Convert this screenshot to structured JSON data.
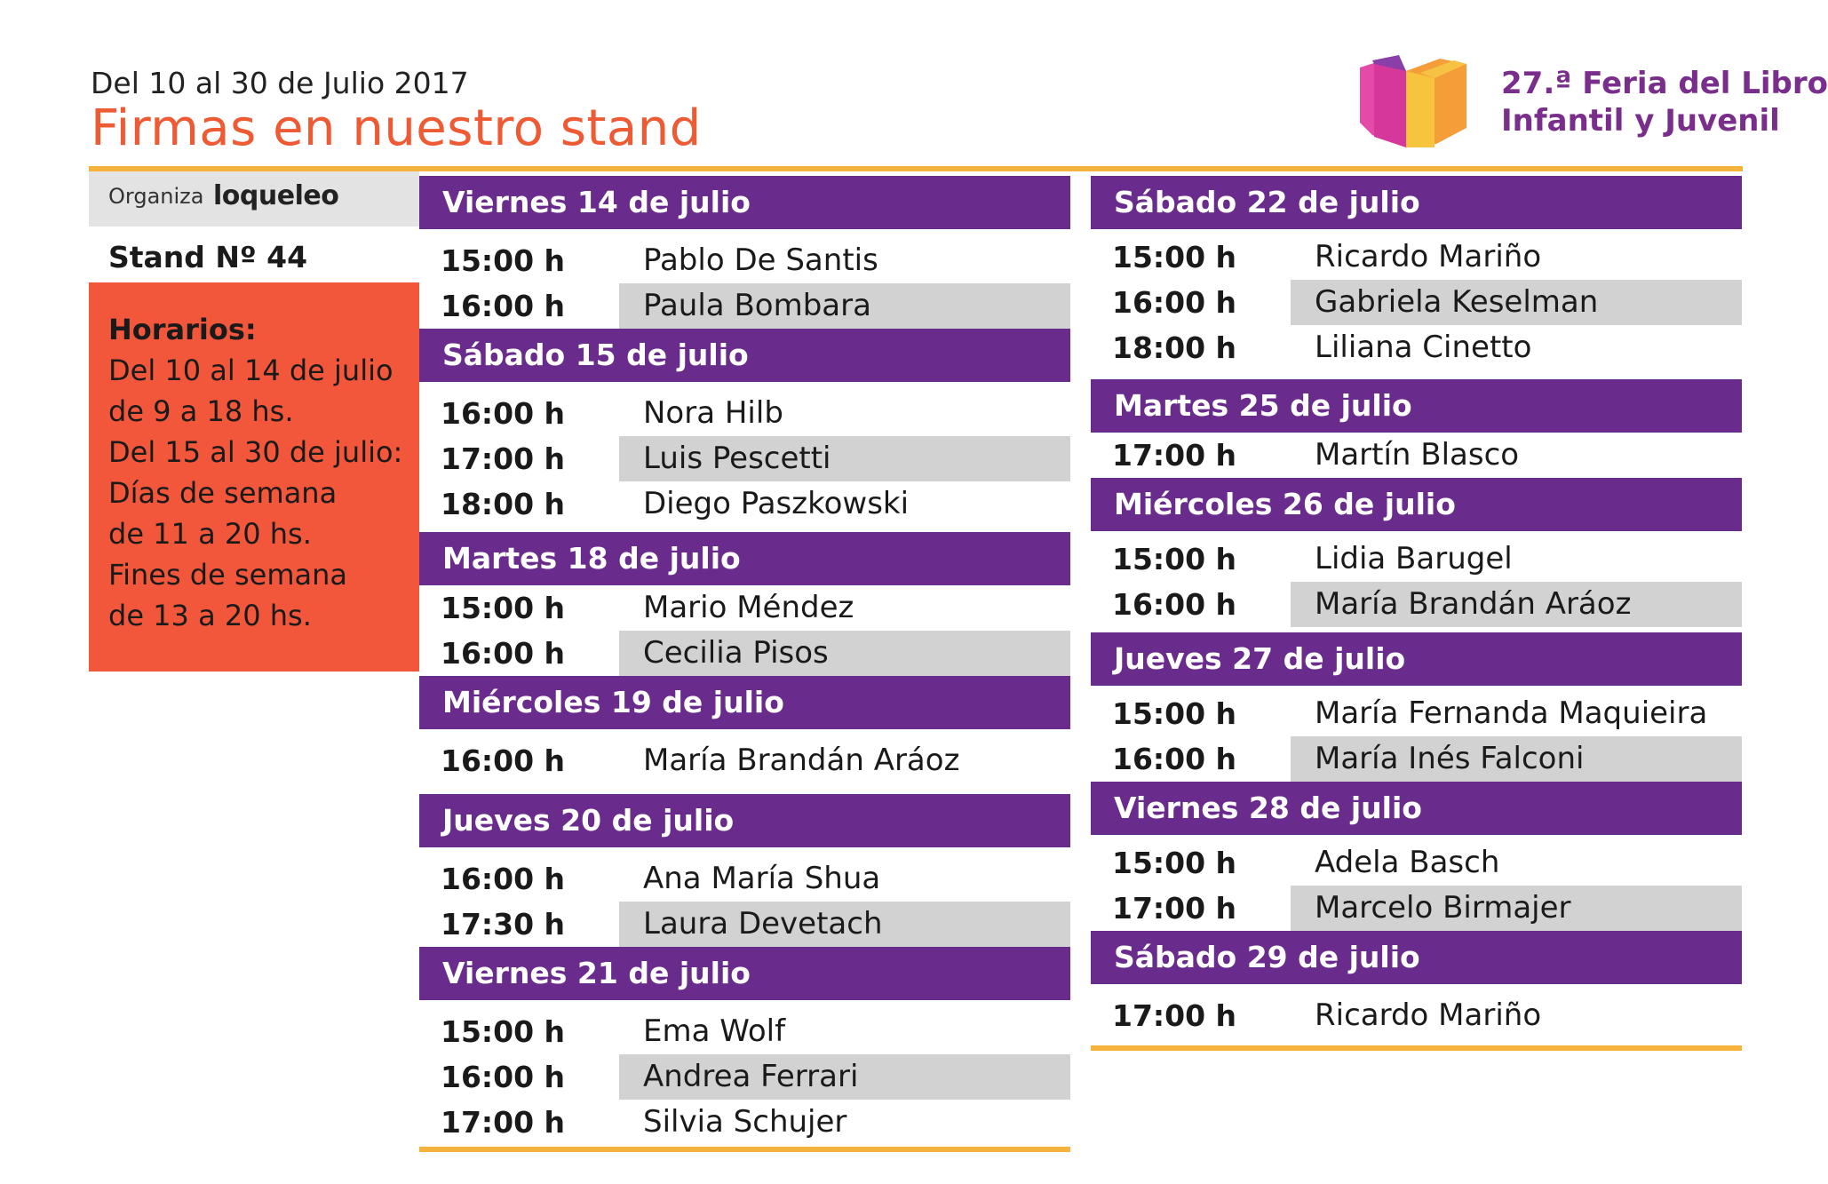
{
  "header": {
    "dates": "Del 10 al 30 de Julio 2017",
    "title": "Firmas en nuestro stand"
  },
  "fair": {
    "line1": "27.ª Feria del Libro",
    "line2": "Infantil y Juvenil"
  },
  "organizer": {
    "label": "Organiza",
    "brand": "loqueleo"
  },
  "stand": "Stand  Nº 44",
  "hours": {
    "title": "Horarios:",
    "lines": [
      "Del 10 al 14 de julio",
      "de 9 a 18 hs.",
      "Del 15 al 30 de julio:",
      "Días de semana",
      "de 11 a 20 hs.",
      "Fines de semana",
      "de 13 a 20 hs."
    ]
  },
  "columns": [
    {
      "days": [
        {
          "title": "Viernes 14 de julio",
          "rows": [
            {
              "time": "15:00 h",
              "name": "Pablo De Santis"
            },
            {
              "time": "16:00 h",
              "name": "Paula Bombara"
            }
          ]
        },
        {
          "title": "Sábado 15 de julio",
          "rows": [
            {
              "time": "16:00 h",
              "name": "Nora Hilb"
            },
            {
              "time": "17:00 h",
              "name": "Luis Pescetti"
            },
            {
              "time": "18:00 h",
              "name": "Diego Paszkowski"
            }
          ]
        },
        {
          "title": "Martes 18 de julio",
          "rows": [
            {
              "time": "15:00 h",
              "name": "Mario Méndez"
            },
            {
              "time": "16:00 h",
              "name": "Cecilia Pisos"
            }
          ]
        },
        {
          "title": "Miércoles 19 de julio",
          "rows": [
            {
              "time": "16:00 h",
              "name": "María Brandán Aráoz"
            }
          ]
        },
        {
          "title": "Jueves 20 de julio",
          "rows": [
            {
              "time": "16:00 h",
              "name": "Ana María Shua"
            },
            {
              "time": "17:30 h",
              "name": "Laura Devetach"
            }
          ]
        },
        {
          "title": "Viernes 21 de julio",
          "rows": [
            {
              "time": "15:00 h",
              "name": "Ema Wolf"
            },
            {
              "time": "16:00 h",
              "name": "Andrea Ferrari"
            },
            {
              "time": "17:00 h",
              "name": "Silvia Schujer"
            }
          ]
        }
      ]
    },
    {
      "days": [
        {
          "title": "Sábado 22 de julio",
          "rows": [
            {
              "time": "15:00 h",
              "name": "Ricardo Mariño"
            },
            {
              "time": "16:00 h",
              "name": "Gabriela Keselman"
            },
            {
              "time": "18:00 h",
              "name": "Liliana Cinetto"
            }
          ]
        },
        {
          "title": "Martes 25 de julio",
          "rows": [
            {
              "time": "17:00 h",
              "name": "Martín Blasco"
            }
          ]
        },
        {
          "title": "Miércoles 26 de julio",
          "rows": [
            {
              "time": "15:00 h",
              "name": "Lidia Barugel"
            },
            {
              "time": "16:00 h",
              "name": "María Brandán Aráoz"
            }
          ]
        },
        {
          "title": "Jueves 27 de julio",
          "rows": [
            {
              "time": "15:00 h",
              "name": "María Fernanda Maquieira"
            },
            {
              "time": "16:00 h",
              "name": "María Inés Falconi"
            }
          ]
        },
        {
          "title": "Viernes 28 de julio",
          "rows": [
            {
              "time": "15:00 h",
              "name": "Adela Basch"
            },
            {
              "time": "17:00 h",
              "name": "Marcelo Birmajer"
            }
          ]
        },
        {
          "title": "Sábado 29 de julio",
          "rows": [
            {
              "time": "17:00 h",
              "name": "Ricardo Mariño"
            }
          ]
        }
      ]
    }
  ],
  "colors": {
    "title": "#ee5a33",
    "day_header": "#6a2c8c",
    "accent_line": "#f7b23b",
    "hours_box": "#f2573c",
    "row_shade": "#d2d2d3",
    "fair_text": "#7a2e8c"
  }
}
